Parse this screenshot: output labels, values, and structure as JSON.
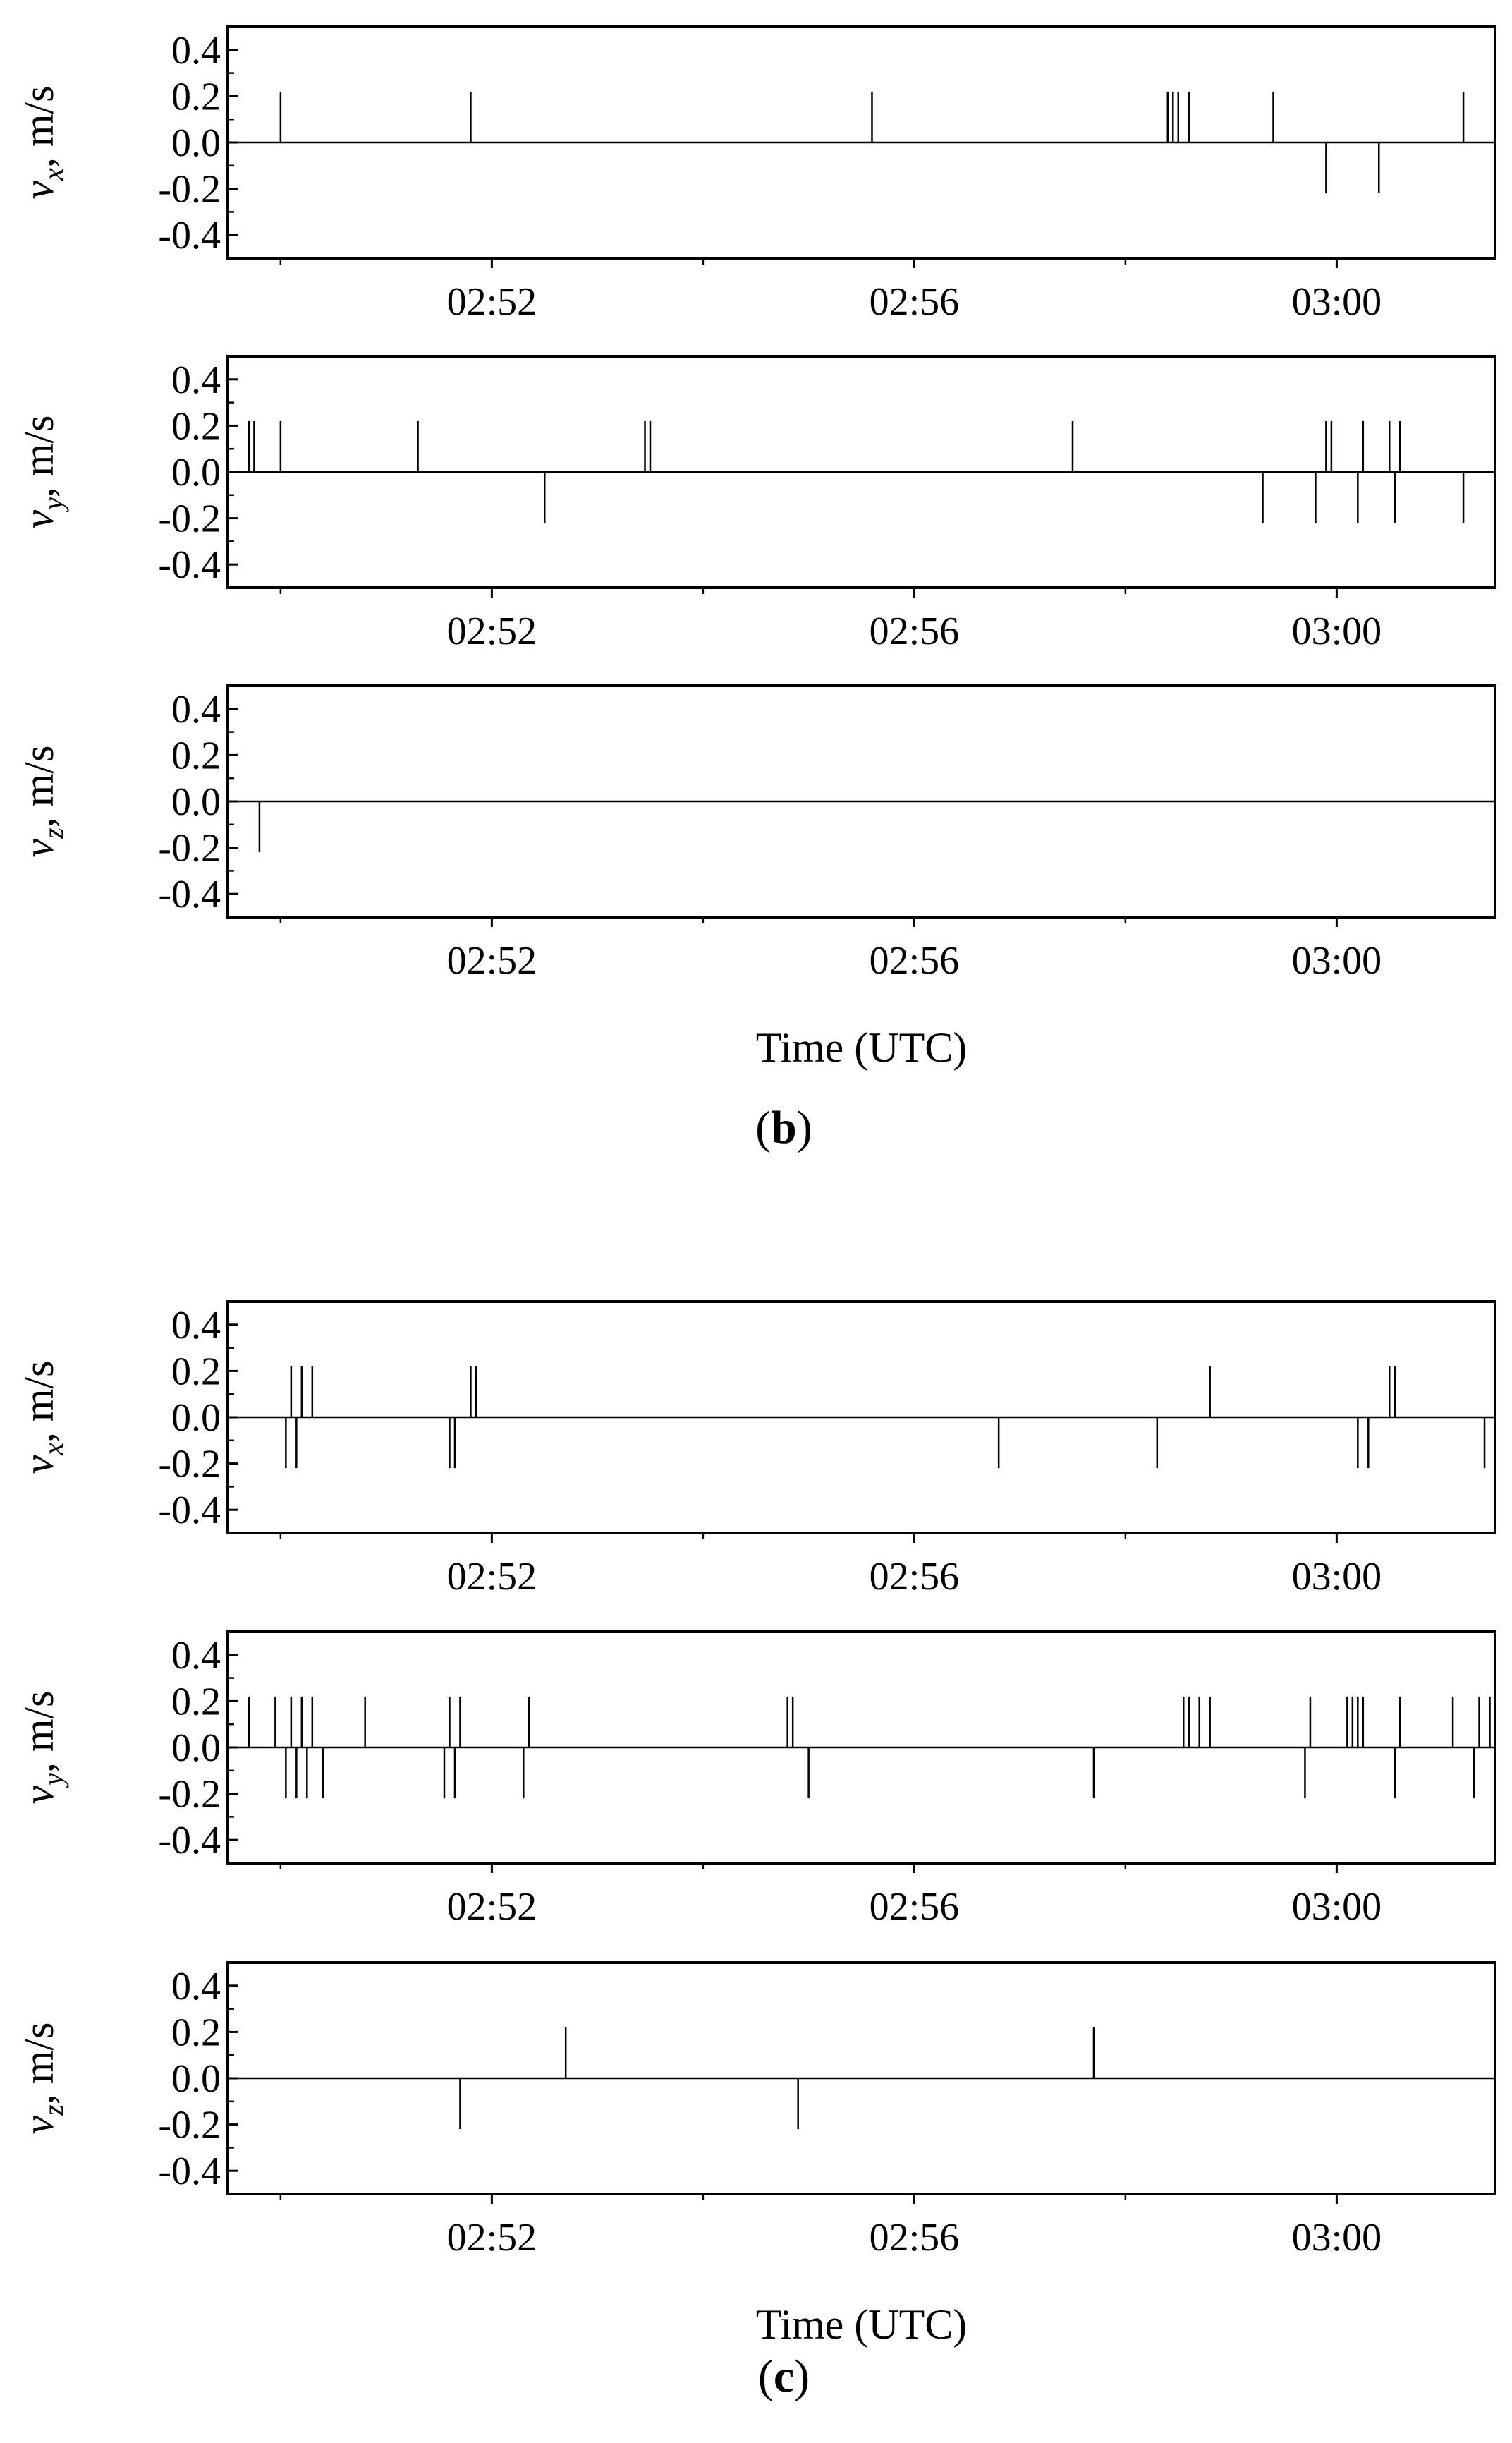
{
  "chart_data": [
    {
      "type": "bar",
      "group": "b",
      "y_label_var": "v",
      "y_label_sub": "x",
      "y_label_unit": ", m/s",
      "ylim": [
        -0.5,
        0.5
      ],
      "y_ticks": [
        "0.4",
        "0.2",
        "0.0",
        "-0.2",
        "-0.4"
      ],
      "x_ticks": [
        "02:52",
        "02:56",
        "03:00"
      ],
      "x": [
        170.0,
        171.8,
        175.6,
        178.4,
        178.45,
        178.5,
        178.6,
        179.4,
        179.9,
        180.4,
        181.2
      ],
      "values": [
        0.22,
        0.22,
        0.22,
        0.22,
        0.22,
        0.22,
        0.22,
        0.22,
        -0.22,
        -0.22,
        0.22
      ]
    },
    {
      "type": "bar",
      "group": "b",
      "y_label_var": "v",
      "y_label_sub": "y",
      "y_label_unit": ", m/s",
      "ylim": [
        -0.5,
        0.5
      ],
      "y_ticks": [
        "0.4",
        "0.2",
        "0.0",
        "-0.2",
        "-0.4"
      ],
      "x_ticks": [
        "02:52",
        "02:56",
        "03:00"
      ],
      "x": [
        169.7,
        169.75,
        170.0,
        171.3,
        172.5,
        173.45,
        173.5,
        177.5,
        179.3,
        179.8,
        179.9,
        179.95,
        180.2,
        180.25,
        180.5,
        180.55,
        180.6,
        181.2
      ],
      "values": [
        0.22,
        0.22,
        0.22,
        0.22,
        -0.22,
        0.22,
        0.22,
        0.22,
        -0.22,
        -0.22,
        0.22,
        0.22,
        -0.22,
        0.22,
        0.22,
        -0.22,
        0.22,
        -0.22
      ]
    },
    {
      "type": "bar",
      "group": "b",
      "y_label_var": "v",
      "y_label_sub": "z",
      "y_label_unit": ", m/s",
      "ylim": [
        -0.5,
        0.5
      ],
      "y_ticks": [
        "0.4",
        "0.2",
        "0.0",
        "-0.2",
        "-0.4"
      ],
      "x_ticks": [
        "02:52",
        "02:56",
        "03:00"
      ],
      "x_title": "Time (UTC)",
      "x": [
        169.8
      ],
      "values": [
        -0.22
      ]
    },
    {
      "type": "bar",
      "group": "c",
      "y_label_var": "v",
      "y_label_sub": "x",
      "y_label_unit": ", m/s",
      "ylim": [
        -0.5,
        0.5
      ],
      "y_ticks": [
        "0.4",
        "0.2",
        "0.0",
        "-0.2",
        "-0.4"
      ],
      "x_ticks": [
        "02:52",
        "02:56",
        "03:00"
      ],
      "x": [
        170.05,
        170.1,
        170.15,
        170.2,
        170.3,
        171.6,
        171.65,
        171.8,
        171.85,
        176.8,
        178.3,
        178.8,
        180.2,
        180.3,
        180.5,
        180.55,
        181.4
      ],
      "values": [
        -0.22,
        0.22,
        -0.22,
        0.22,
        0.22,
        -0.22,
        -0.22,
        0.22,
        0.22,
        -0.22,
        -0.22,
        0.22,
        -0.22,
        -0.22,
        0.22,
        0.22,
        -0.22
      ]
    },
    {
      "type": "bar",
      "group": "c",
      "y_label_var": "v",
      "y_label_sub": "y",
      "y_label_unit": ", m/s",
      "ylim": [
        -0.5,
        0.5
      ],
      "y_ticks": [
        "0.4",
        "0.2",
        "0.0",
        "-0.2",
        "-0.4"
      ],
      "x_ticks": [
        "02:52",
        "02:56",
        "03:00"
      ],
      "x": [
        169.7,
        169.95,
        170.05,
        170.1,
        170.15,
        170.2,
        170.25,
        170.3,
        170.4,
        170.8,
        171.55,
        171.6,
        171.65,
        171.7,
        172.3,
        172.35,
        174.8,
        174.85,
        175.0,
        177.7,
        178.55,
        178.6,
        178.7,
        178.8,
        179.7,
        179.75,
        180.1,
        180.15,
        180.2,
        180.25,
        180.55,
        180.6,
        181.1,
        181.3,
        181.35,
        181.45,
        181.5
      ],
      "values": [
        0.22,
        0.22,
        -0.22,
        0.22,
        -0.22,
        0.22,
        -0.22,
        0.22,
        -0.22,
        0.22,
        -0.22,
        0.22,
        -0.22,
        0.22,
        -0.22,
        0.22,
        0.22,
        0.22,
        -0.22,
        -0.22,
        0.22,
        0.22,
        0.22,
        0.22,
        -0.22,
        0.22,
        0.22,
        0.22,
        0.22,
        0.22,
        -0.22,
        0.22,
        0.22,
        -0.22,
        0.22,
        0.22,
        -0.22
      ]
    },
    {
      "type": "bar",
      "group": "c",
      "y_label_var": "v",
      "y_label_sub": "z",
      "y_label_unit": ", m/s",
      "ylim": [
        -0.5,
        0.5
      ],
      "y_ticks": [
        "0.4",
        "0.2",
        "0.0",
        "-0.2",
        "-0.4"
      ],
      "x_ticks": [
        "02:52",
        "02:56",
        "03:00"
      ],
      "x_title": "Time (UTC)",
      "x": [
        171.7,
        172.7,
        174.9,
        177.7
      ],
      "values": [
        -0.22,
        0.22,
        -0.22,
        0.22
      ]
    }
  ],
  "x_axis": {
    "min": 169.5,
    "max": 181.5,
    "tick_values": [
      172,
      176,
      180
    ],
    "minor_tick_values": [
      170,
      174,
      178
    ]
  },
  "panel_labels": [
    {
      "open": "(",
      "letter": "b",
      "close": ")"
    },
    {
      "open": "(",
      "letter": "c",
      "close": ")"
    }
  ]
}
